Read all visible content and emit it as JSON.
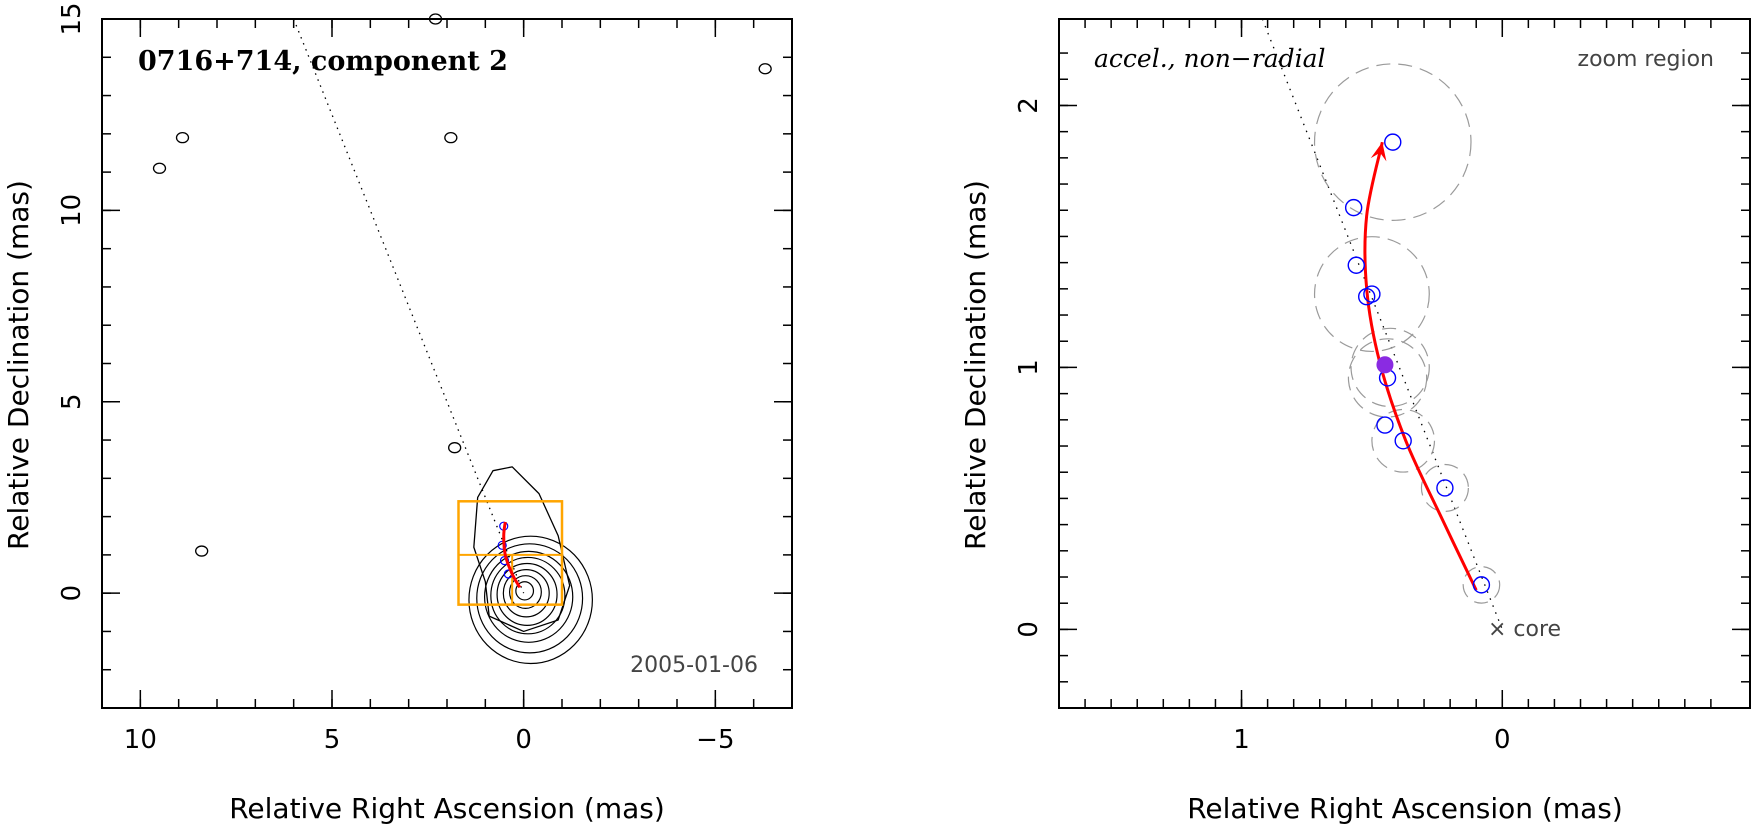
{
  "chart_data": [
    {
      "type": "contour-map",
      "title": "0716+714, component 2",
      "date_label": "2005-01-06",
      "xlabel": "Relative Right Ascension (mas)",
      "ylabel": "Relative Declination (mas)",
      "xlim": [
        11,
        -7
      ],
      "ylim": [
        -3,
        15
      ],
      "xticks": [
        10,
        5,
        0,
        -5
      ],
      "yticks": [
        0,
        5,
        10,
        15
      ],
      "tick_labels_x": [
        "10",
        "5",
        "0",
        "−5"
      ],
      "tick_labels_y": [
        "0",
        "5",
        "10",
        "15"
      ],
      "colors": {
        "contour": "#000000",
        "trajectory": "#ff0000",
        "box": "#ffa500",
        "marker": "#0000ff"
      },
      "contours": {
        "center": [
          0.0,
          0.1
        ],
        "radii": [
          0.25,
          0.45,
          0.65,
          0.85,
          1.05,
          1.25,
          1.5,
          1.75
        ]
      },
      "extended_contour": [
        [
          1.0,
          0.3
        ],
        [
          1.3,
          1.2
        ],
        [
          1.2,
          2.5
        ],
        [
          0.8,
          3.2
        ],
        [
          0.3,
          3.3
        ],
        [
          -0.4,
          2.6
        ],
        [
          -0.9,
          1.5
        ],
        [
          -1.2,
          0.2
        ],
        [
          -0.9,
          -0.7
        ],
        [
          0.0,
          -1.0
        ],
        [
          0.9,
          -0.6
        ]
      ],
      "blobs": [
        [
          9.5,
          11.1
        ],
        [
          8.9,
          11.9
        ],
        [
          1.9,
          11.9
        ],
        [
          2.3,
          15.0
        ],
        [
          8.4,
          1.1
        ],
        [
          -6.3,
          13.7
        ],
        [
          1.8,
          3.8
        ]
      ],
      "jet_axis": [
        [
          6.0,
          15.0
        ],
        [
          0.0,
          0.0
        ]
      ],
      "zoom_box": {
        "ra": [
          -1.0,
          1.7
        ],
        "dec": [
          -0.3,
          2.4
        ],
        "mid_dec": 1.0,
        "mid_ra": 0.3
      },
      "trajectory": [
        [
          0.1,
          0.15
        ],
        [
          0.3,
          0.5
        ],
        [
          0.48,
          1.0
        ],
        [
          0.52,
          1.5
        ],
        [
          0.48,
          1.86
        ]
      ],
      "points": [
        [
          0.52,
          1.75
        ],
        [
          0.56,
          1.25
        ],
        [
          0.5,
          0.85
        ],
        [
          0.4,
          0.5
        ]
      ]
    },
    {
      "type": "scatter",
      "label": "accel., non−radial",
      "region_label": "zoom region",
      "core_label": "× core",
      "xlabel": "Relative Right Ascension (mas)",
      "ylabel": "Relative Declination (mas)",
      "xlim": [
        1.7,
        -0.95
      ],
      "ylim": [
        -0.3,
        2.33
      ],
      "xticks": [
        1,
        0
      ],
      "yticks": [
        0,
        1,
        2
      ],
      "tick_labels_x": [
        "1",
        "0"
      ],
      "tick_labels_y": [
        "0",
        "1",
        "2"
      ],
      "colors": {
        "points": "#0000ff",
        "trajectory": "#ff0000",
        "highlight": "#8a2be2",
        "errors": "#9a9a9a"
      },
      "points": [
        {
          "ra": 0.08,
          "dec": 0.17,
          "err": 0.07
        },
        {
          "ra": 0.22,
          "dec": 0.54,
          "err": 0.09
        },
        {
          "ra": 0.38,
          "dec": 0.72,
          "err": 0.12
        },
        {
          "ra": 0.45,
          "dec": 0.78,
          "err": 0.0
        },
        {
          "ra": 0.44,
          "dec": 0.96,
          "err": 0.15
        },
        {
          "ra": 0.52,
          "dec": 1.27,
          "err": 0.0
        },
        {
          "ra": 0.5,
          "dec": 1.28,
          "err": 0.22
        },
        {
          "ra": 0.56,
          "dec": 1.39,
          "err": 0.0
        },
        {
          "ra": 0.57,
          "dec": 1.61,
          "err": 0.0
        },
        {
          "ra": 0.42,
          "dec": 1.86,
          "err": 0.3
        }
      ],
      "extra_errors": [
        {
          "ra": 0.43,
          "dec": 1.0,
          "err": 0.15
        }
      ],
      "highlight_point": {
        "ra": 0.45,
        "dec": 1.01
      },
      "trajectory": [
        [
          0.1,
          0.15
        ],
        [
          0.23,
          0.42
        ],
        [
          0.37,
          0.72
        ],
        [
          0.47,
          1.02
        ],
        [
          0.52,
          1.3
        ],
        [
          0.52,
          1.58
        ],
        [
          0.46,
          1.86
        ]
      ],
      "jet_axis": [
        [
          0.92,
          2.33
        ],
        [
          0.0,
          0.0
        ]
      ]
    }
  ]
}
